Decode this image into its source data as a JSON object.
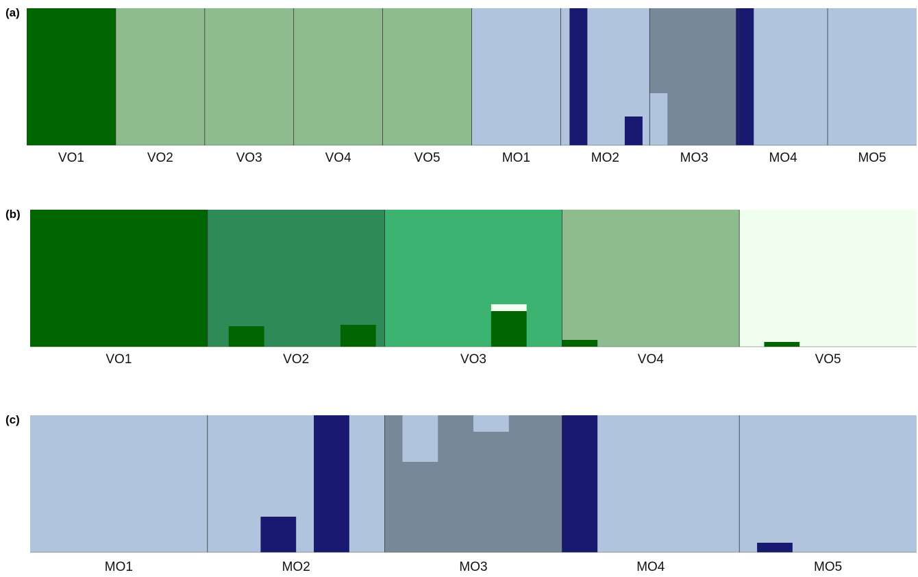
{
  "chart_data": [
    {
      "type": "bar",
      "stacked": true,
      "panel": "(a)",
      "ylim": [
        0,
        1
      ],
      "grid": false,
      "colors": {
        "vo1_cluster": "#006400",
        "vo_cluster": "#8fbc8f",
        "mo_cluster": "#b0c4de",
        "mo3_cluster": "#778899",
        "dark_cluster": "#191970"
      },
      "populations": [
        "VO1",
        "VO2",
        "VO3",
        "VO4",
        "VO5",
        "MO1",
        "MO2",
        "MO3",
        "MO4",
        "MO5"
      ],
      "individuals_per_population": 5,
      "segments": [
        {
          "from": 0,
          "to": 5,
          "color": "#006400",
          "value": 1
        },
        {
          "from": 5,
          "to": 25,
          "color": "#8fbc8f",
          "value": 1
        },
        {
          "from": 25,
          "to": 30,
          "color": "#b0c4de",
          "value": 1
        },
        {
          "from": 30,
          "to": 35,
          "color": "#b0c4de",
          "value": 1
        },
        {
          "from": 35,
          "to": 40,
          "color": "#778899",
          "value": 1
        },
        {
          "from": 40,
          "to": 50,
          "color": "#b0c4de",
          "value": 1
        }
      ],
      "individual_bars": [
        {
          "index": 30.5,
          "color": "#191970",
          "value": 1.0
        },
        {
          "index": 33.6,
          "color": "#191970",
          "value": 0.21
        },
        {
          "index": 35.0,
          "color": "#b0c4de",
          "value": 0.38
        },
        {
          "index": 39.85,
          "color": "#191970",
          "value": 1.0
        }
      ]
    },
    {
      "type": "bar",
      "stacked": true,
      "panel": "(b)",
      "ylim": [
        0,
        1
      ],
      "grid": false,
      "colors": {
        "cluster_1": "#006400",
        "cluster_2": "#2e8b57",
        "cluster_3": "#3cb371",
        "cluster_4": "#8fbc8f",
        "cluster_5": "#f0fff0"
      },
      "populations": [
        "VO1",
        "VO2",
        "VO3",
        "VO4",
        "VO5"
      ],
      "individuals_per_population": 5,
      "segments": [
        {
          "from": 0,
          "to": 5,
          "color": "#006400",
          "value": 1
        },
        {
          "from": 5,
          "to": 10,
          "color": "#2e8b57",
          "value": 1
        },
        {
          "from": 10,
          "to": 15,
          "color": "#3cb371",
          "value": 1
        },
        {
          "from": 15,
          "to": 20,
          "color": "#8fbc8f",
          "value": 1
        },
        {
          "from": 20,
          "to": 25,
          "color": "#f0fff0",
          "value": 1
        }
      ],
      "individual_bars": [
        {
          "index": 5.6,
          "color": "#006400",
          "value": 0.15
        },
        {
          "index": 8.75,
          "color": "#006400",
          "value": 0.16
        },
        {
          "index": 13.0,
          "color": "#006400",
          "value": 0.26
        },
        {
          "index": 13.0,
          "color": "#f0fff0",
          "value": 0.05,
          "base": 0.26
        },
        {
          "index": 15.0,
          "color": "#006400",
          "value": 0.05
        },
        {
          "index": 20.7,
          "color": "#006400",
          "value": 0.035
        }
      ]
    },
    {
      "type": "bar",
      "stacked": true,
      "panel": "(c)",
      "ylim": [
        0,
        1
      ],
      "grid": false,
      "colors": {
        "mo_cluster": "#b0c4de",
        "mo3_cluster": "#778899",
        "dark_cluster": "#191970"
      },
      "populations": [
        "MO1",
        "MO2",
        "MO3",
        "MO4",
        "MO5"
      ],
      "individuals_per_population": 5,
      "segments": [
        {
          "from": 0,
          "to": 10,
          "color": "#b0c4de",
          "value": 1
        },
        {
          "from": 10,
          "to": 15,
          "color": "#778899",
          "value": 1
        },
        {
          "from": 15,
          "to": 25,
          "color": "#b0c4de",
          "value": 1
        }
      ],
      "individual_bars": [
        {
          "index": 6.5,
          "color": "#191970",
          "value": 0.26
        },
        {
          "index": 8.0,
          "color": "#191970",
          "value": 1.0
        },
        {
          "index": 10.5,
          "color": "#b0c4de",
          "value": 0.34,
          "top": true
        },
        {
          "index": 12.5,
          "color": "#b0c4de",
          "value": 0.12,
          "top": true
        },
        {
          "index": 15.0,
          "color": "#191970",
          "value": 1.0
        },
        {
          "index": 20.5,
          "color": "#191970",
          "value": 0.07
        }
      ]
    }
  ]
}
